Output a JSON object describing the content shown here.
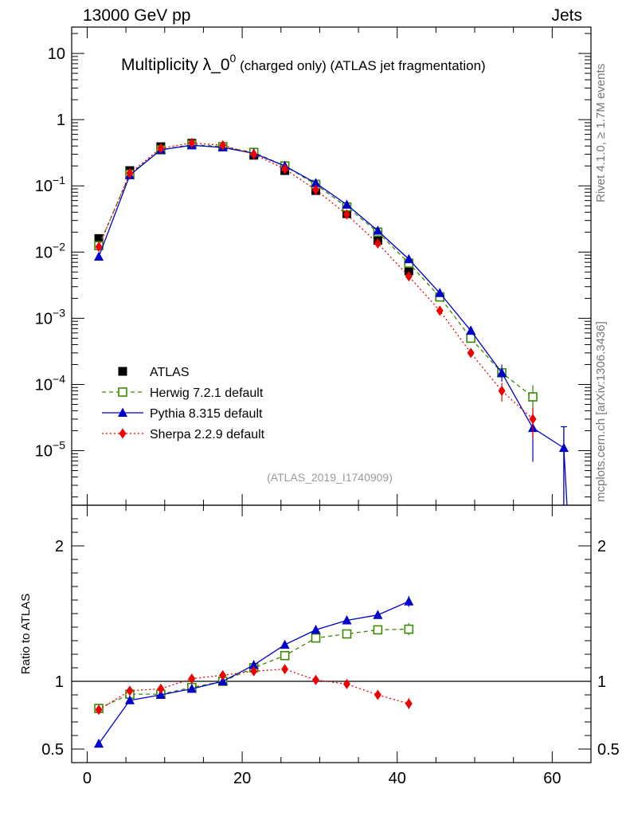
{
  "header": {
    "left": "13000 GeV pp",
    "right": "Jets"
  },
  "side": {
    "rivet": "Rivet 4.1.0, ≥ 1.7M events",
    "site": "mcplots.cern.ch [arXiv:1306.3436]"
  },
  "chart_data": {
    "type": "scatter",
    "title_main": "Multiplicity λ_0",
    "title_sup": "0",
    "title_tail": " (charged only) (ATLAS jet fragmentation)",
    "analysis_label": "(ATLAS_2019_I1740909)",
    "xlim": [
      -2,
      65
    ],
    "xticks": [
      "0",
      "20",
      "40",
      "60"
    ],
    "top_panel": {
      "yscale": "log",
      "ylim": [
        1.5e-06,
        25
      ],
      "yticks": [
        {
          "v": 10,
          "m": "10",
          "e": ""
        },
        {
          "v": 1,
          "m": "1",
          "e": ""
        },
        {
          "v": 0.1,
          "m": "10",
          "e": "−1"
        },
        {
          "v": 0.01,
          "m": "10",
          "e": "−2"
        },
        {
          "v": 0.001,
          "m": "10",
          "e": "−3"
        },
        {
          "v": 0.0001,
          "m": "10",
          "e": "−4"
        },
        {
          "v": 1e-05,
          "m": "10",
          "e": "−5"
        }
      ]
    },
    "ratio_panel": {
      "ylabel": "Ratio to ATLAS",
      "ylim": [
        0.4,
        2.3
      ],
      "yticks": [
        "0.5",
        "1",
        "2"
      ]
    },
    "series": [
      {
        "name": "ATLAS",
        "color": "#000000",
        "marker": "square-filled",
        "x": [
          1.5,
          5.5,
          9.5,
          13.5,
          17.5,
          21.5,
          25.5,
          29.5,
          33.5,
          37.5,
          41.5
        ],
        "y": [
          0.016,
          0.17,
          0.39,
          0.44,
          0.39,
          0.29,
          0.17,
          0.085,
          0.038,
          0.015,
          0.0052
        ],
        "ratio": [
          1,
          1,
          1,
          1,
          1,
          1,
          1,
          1,
          1,
          1,
          1
        ]
      },
      {
        "name": "Herwig 7.2.1 default",
        "color": "#3a8a00",
        "marker": "square-open",
        "x": [
          1.5,
          5.5,
          9.5,
          13.5,
          17.5,
          21.5,
          25.5,
          29.5,
          33.5,
          37.5,
          41.5,
          45.5,
          49.5,
          53.5,
          57.5
        ],
        "y": [
          0.0125,
          0.15,
          0.35,
          0.42,
          0.39,
          0.32,
          0.2,
          0.105,
          0.048,
          0.02,
          0.0068,
          0.0021,
          0.0005,
          0.00015,
          6.5e-05
        ],
        "ratio": [
          0.8,
          0.905,
          0.905,
          0.955,
          1.0,
          1.1,
          1.19,
          1.32,
          1.35,
          1.38,
          1.385
        ],
        "ratio_err": [
          0.02,
          0.01,
          0.01,
          0.01,
          0.01,
          0.01,
          0.01,
          0.015,
          0.02,
          0.025,
          0.045
        ]
      },
      {
        "name": "Pythia 8.315 default",
        "color": "#0000cc",
        "marker": "triangle",
        "x": [
          1.5,
          5.5,
          9.5,
          13.5,
          17.5,
          21.5,
          25.5,
          29.5,
          33.5,
          37.5,
          41.5,
          45.5,
          49.5,
          53.5,
          57.5,
          61.5
        ],
        "y": [
          0.0085,
          0.145,
          0.35,
          0.41,
          0.38,
          0.31,
          0.2,
          0.11,
          0.052,
          0.021,
          0.0078,
          0.0024,
          0.00065,
          0.00015,
          2.2e-05,
          1.1e-05
        ],
        "ratio": [
          0.54,
          0.86,
          0.9,
          0.945,
          1.0,
          1.12,
          1.27,
          1.38,
          1.45,
          1.49,
          1.59
        ],
        "ratio_err": [
          0.02,
          0.01,
          0.01,
          0.01,
          0.01,
          0.01,
          0.01,
          0.015,
          0.02,
          0.025,
          0.04
        ]
      },
      {
        "name": "Sherpa 2.2.9 default",
        "color": "#ee0000",
        "marker": "diamond",
        "x": [
          1.5,
          5.5,
          9.5,
          13.5,
          17.5,
          21.5,
          25.5,
          29.5,
          33.5,
          37.5,
          41.5,
          45.5,
          49.5,
          53.5,
          57.5
        ],
        "y": [
          0.012,
          0.155,
          0.37,
          0.445,
          0.41,
          0.3,
          0.18,
          0.087,
          0.037,
          0.0135,
          0.0043,
          0.0013,
          0.0003,
          8e-05,
          3e-05
        ],
        "ratio": [
          0.79,
          0.93,
          0.945,
          1.02,
          1.045,
          1.075,
          1.09,
          1.01,
          0.98,
          0.9,
          0.835
        ],
        "ratio_err": [
          0.02,
          0.01,
          0.01,
          0.01,
          0.01,
          0.01,
          0.01,
          0.015,
          0.02,
          0.025,
          0.04
        ]
      }
    ]
  }
}
